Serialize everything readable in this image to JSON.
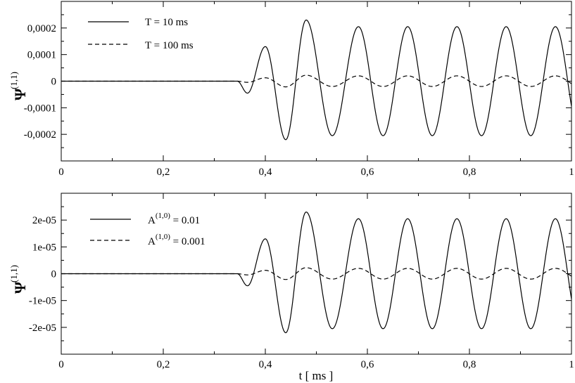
{
  "chart_data": [
    {
      "type": "line",
      "ylabel_main": "Ψ",
      "ylabel_sup": "(1,1)",
      "xlabel": "",
      "xlim": [
        0,
        1
      ],
      "ylim": [
        -0.0003,
        0.0003
      ],
      "xticks": [
        0,
        0.2,
        0.4,
        0.6,
        0.8,
        1
      ],
      "xtick_labels": [
        "0",
        "0,2",
        "0,4",
        "0,6",
        "0,8",
        "1"
      ],
      "yticks": [
        -0.0002,
        -0.0001,
        0,
        0.0001,
        0.0002
      ],
      "ytick_labels": [
        "-0,0002",
        "-0,0001",
        "0",
        "0,0001",
        "0,0002"
      ],
      "legend_position": "top-left",
      "series": [
        {
          "name": "T = 10 ms",
          "style": "solid",
          "amplitude": 0.000205
        },
        {
          "name": "T = 100 ms",
          "style": "dashed",
          "amplitude": 2e-05
        }
      ],
      "signal": {
        "onset": 0.345,
        "first_peaks_t": [
          0.365,
          0.4,
          0.44,
          0.48
        ],
        "first_peaks_scaled": [
          -0.45,
          1.3,
          -2.2,
          2.3
        ],
        "period": 0.0965,
        "steady_first_peak_t": 0.5825
      }
    },
    {
      "type": "line",
      "ylabel_main": "Ψ",
      "ylabel_sup": "(1,1)",
      "xlabel": "t [ ms ]",
      "xlim": [
        0,
        1
      ],
      "ylim": [
        -3e-05,
        3e-05
      ],
      "xticks": [
        0,
        0.2,
        0.4,
        0.6,
        0.8,
        1
      ],
      "xtick_labels": [
        "0",
        "0,2",
        "0,4",
        "0,6",
        "0,8",
        "1"
      ],
      "yticks": [
        -2e-05,
        -1e-05,
        0,
        1e-05,
        2e-05
      ],
      "ytick_labels": [
        "-2e-05",
        "-1e-05",
        "0",
        "1e-05",
        "2e-05"
      ],
      "legend_position": "top-left",
      "series": [
        {
          "name_main": "A",
          "name_sup": "(1,0)",
          "name_tail": " = 0.01",
          "style": "solid",
          "amplitude": 2.05e-05
        },
        {
          "name_main": "A",
          "name_sup": "(1,0)",
          "name_tail": " = 0.001",
          "style": "dashed",
          "amplitude": 2e-06
        }
      ],
      "signal": {
        "onset": 0.345,
        "first_peaks_t": [
          0.365,
          0.4,
          0.44,
          0.48
        ],
        "first_peaks_scaled": [
          -0.45,
          1.3,
          -2.2,
          2.3
        ],
        "period": 0.0965,
        "steady_first_peak_t": 0.5825
      }
    }
  ]
}
